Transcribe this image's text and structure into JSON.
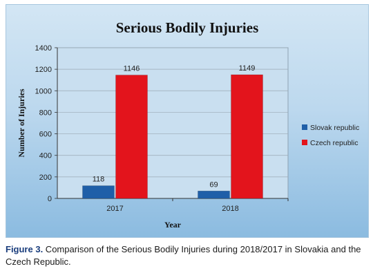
{
  "colors": {
    "slovak": "#1f5fa8",
    "czech": "#e3141c",
    "plot_bg": "#c9dff0",
    "grid": "#9aa9b5"
  },
  "chart_data": {
    "type": "bar",
    "title": "Serious Bodily Injuries",
    "xlabel": "Year",
    "ylabel": "Number of Injuries",
    "categories": [
      "2017",
      "2018"
    ],
    "series": [
      {
        "name": "Slovak republic",
        "values": [
          118,
          69
        ],
        "labels": [
          "118",
          "69"
        ]
      },
      {
        "name": "Czech republic",
        "values": [
          1146,
          1149
        ],
        "labels": [
          "1146",
          "1149"
        ]
      }
    ],
    "ylim": [
      0,
      1400
    ],
    "yticks": [
      0,
      200,
      400,
      600,
      800,
      1000,
      1200,
      1400
    ],
    "grid": true,
    "legend": "right"
  },
  "caption": {
    "label": "Figure 3.",
    "text": " Comparison of the Serious Bodily Injuries during 2018/2017 in Slovakia and the Czech Republic."
  }
}
